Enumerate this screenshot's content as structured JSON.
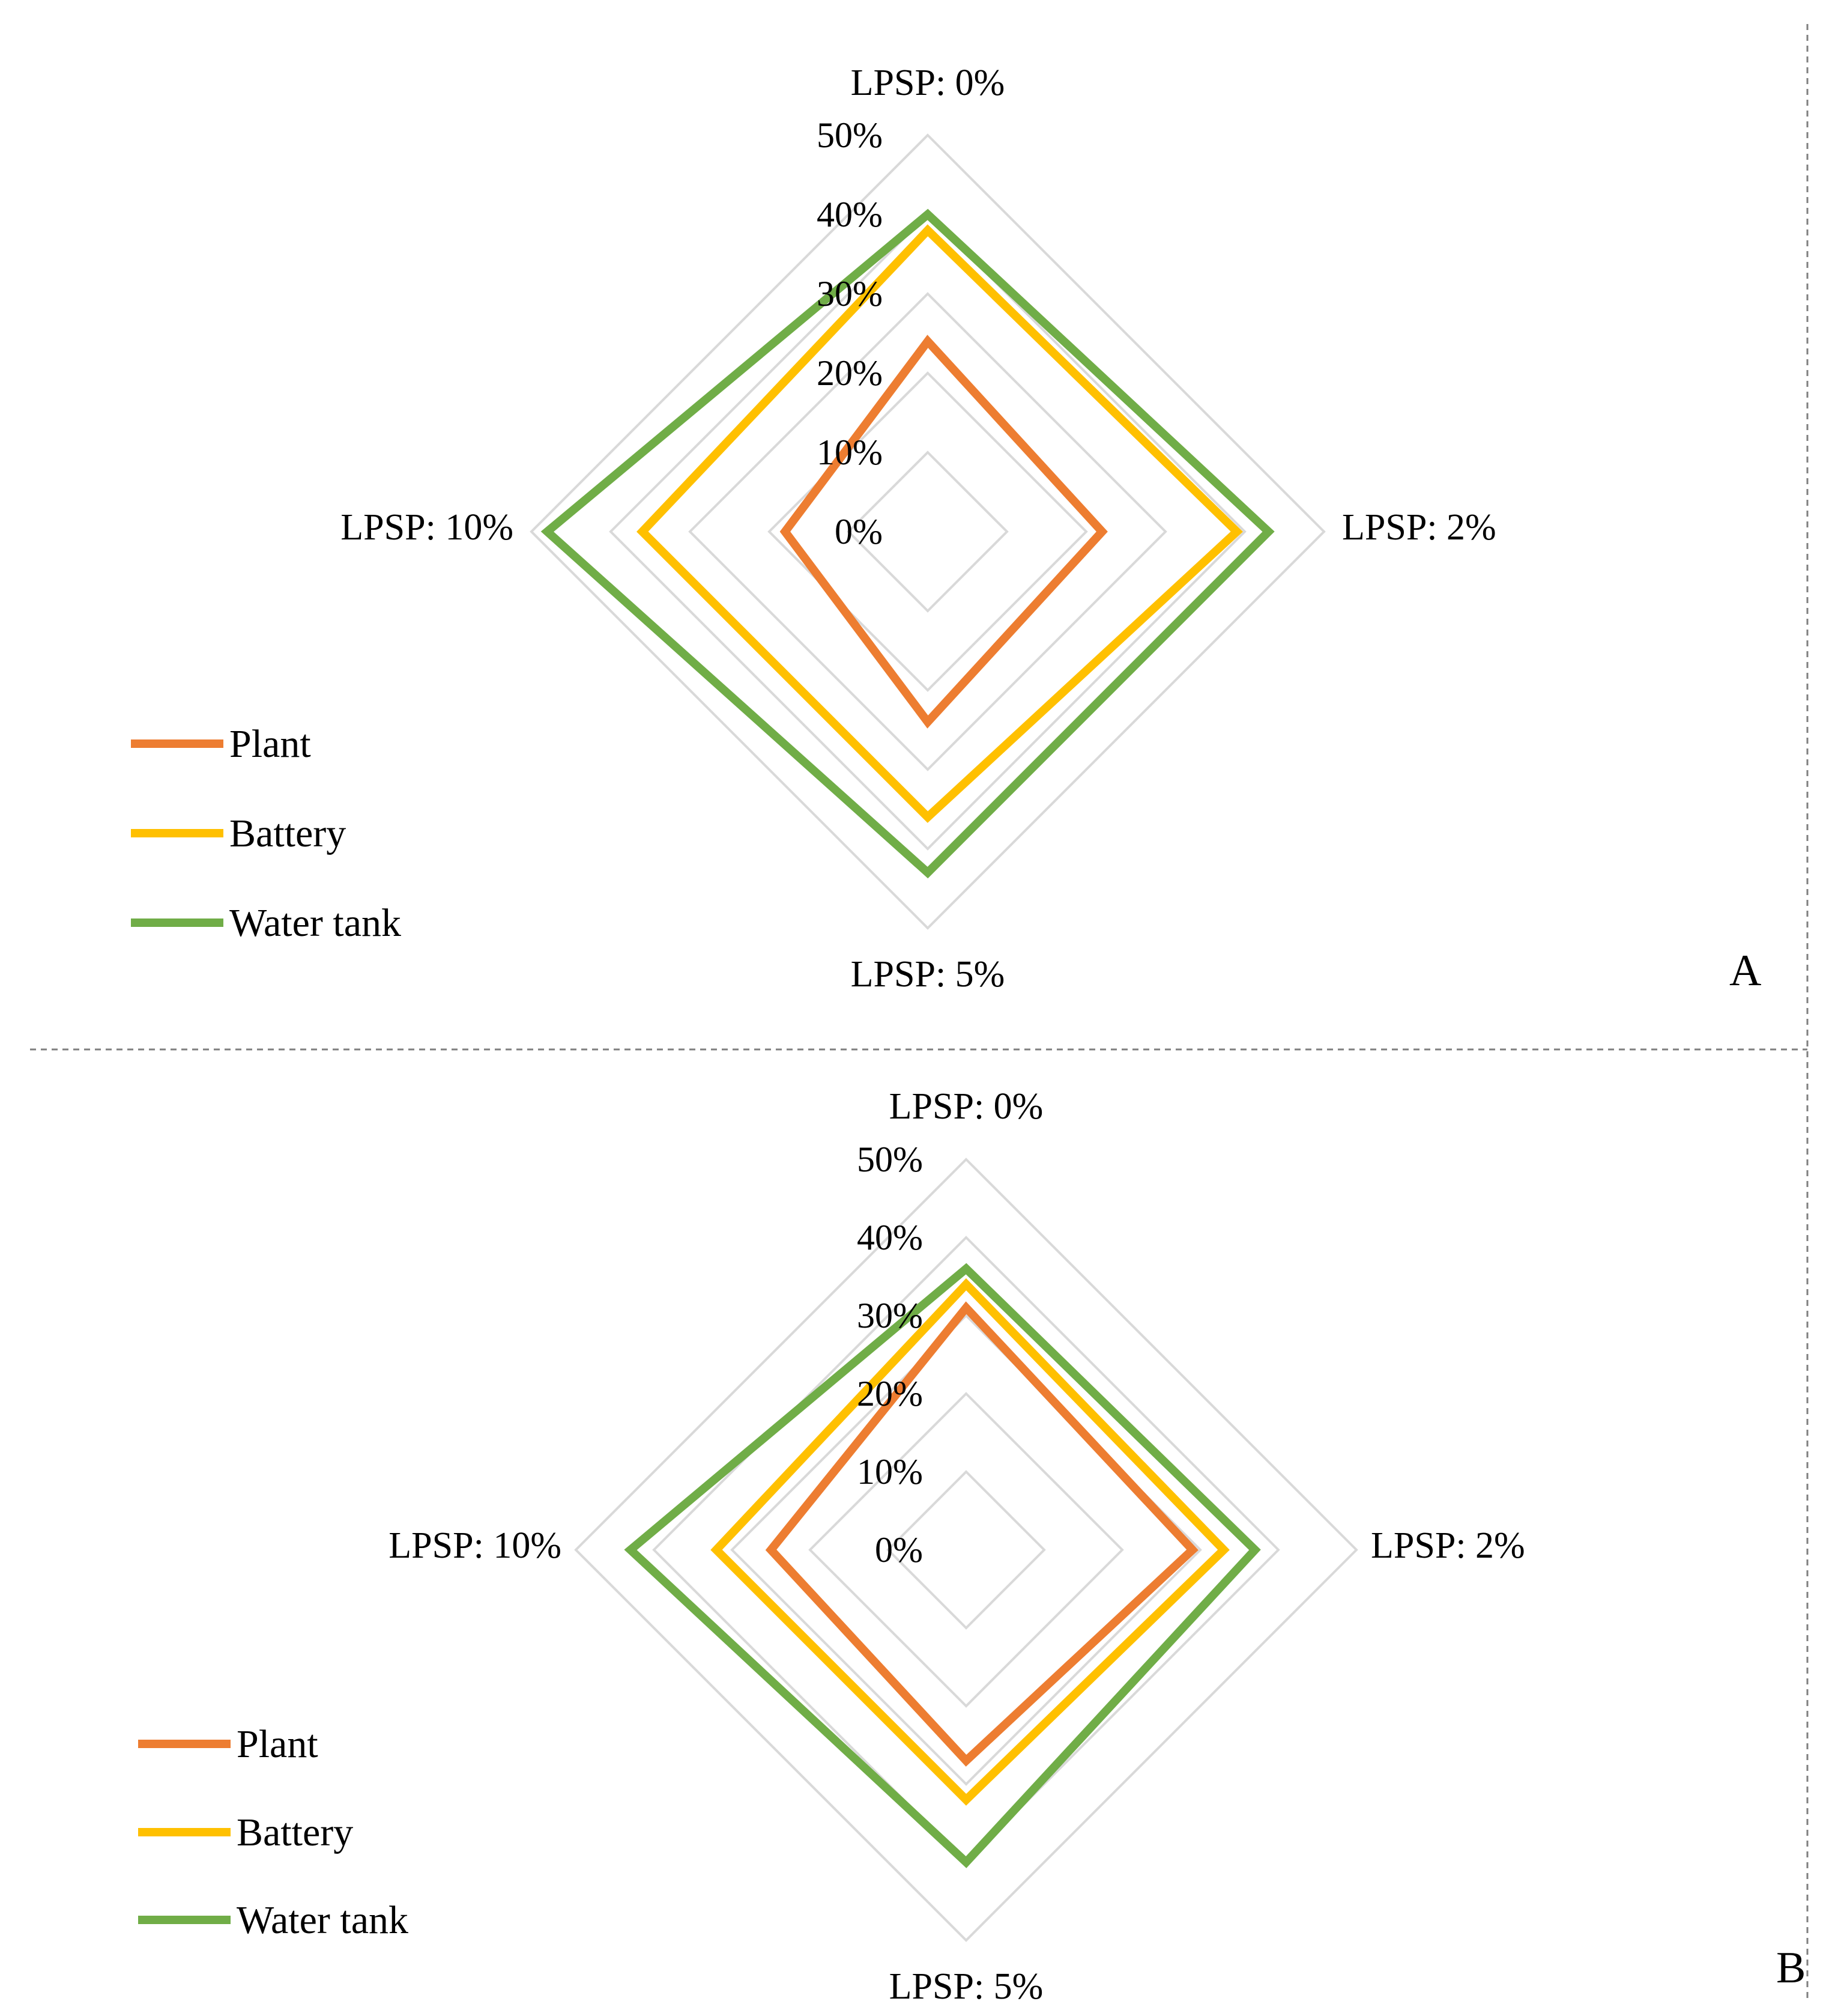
{
  "chart_data": [
    {
      "type": "radar",
      "panel_label": "A",
      "axes": [
        "LPSP: 0%",
        "LPSP: 2%",
        "LPSP: 5%",
        "LPSP: 10%"
      ],
      "ticks": [
        "0%",
        "10%",
        "20%",
        "30%",
        "40%",
        "50%"
      ],
      "rlim": [
        0,
        50
      ],
      "grid": true,
      "legend_position": "bottom-left",
      "series": [
        {
          "name": "Plant",
          "color": "#ED7D31",
          "values": [
            24,
            22,
            24,
            18
          ]
        },
        {
          "name": "Battery",
          "color": "#FFC000",
          "values": [
            38,
            39,
            36,
            36
          ]
        },
        {
          "name": "Water tank",
          "color": "#70AD47",
          "values": [
            40,
            43,
            43,
            48
          ]
        }
      ]
    },
    {
      "type": "radar",
      "panel_label": "B",
      "axes": [
        "LPSP: 0%",
        "LPSP: 2%",
        "LPSP: 5%",
        "LPSP: 10%"
      ],
      "ticks": [
        "0%",
        "10%",
        "20%",
        "30%",
        "40%",
        "50%"
      ],
      "rlim": [
        0,
        50
      ],
      "grid": true,
      "legend_position": "bottom-left",
      "series": [
        {
          "name": "Plant",
          "color": "#ED7D31",
          "values": [
            31,
            29,
            27,
            25
          ]
        },
        {
          "name": "Battery",
          "color": "#FFC000",
          "values": [
            34,
            33,
            32,
            32
          ]
        },
        {
          "name": "Water tank",
          "color": "#70AD47",
          "values": [
            36,
            37,
            40,
            43
          ]
        }
      ]
    }
  ]
}
